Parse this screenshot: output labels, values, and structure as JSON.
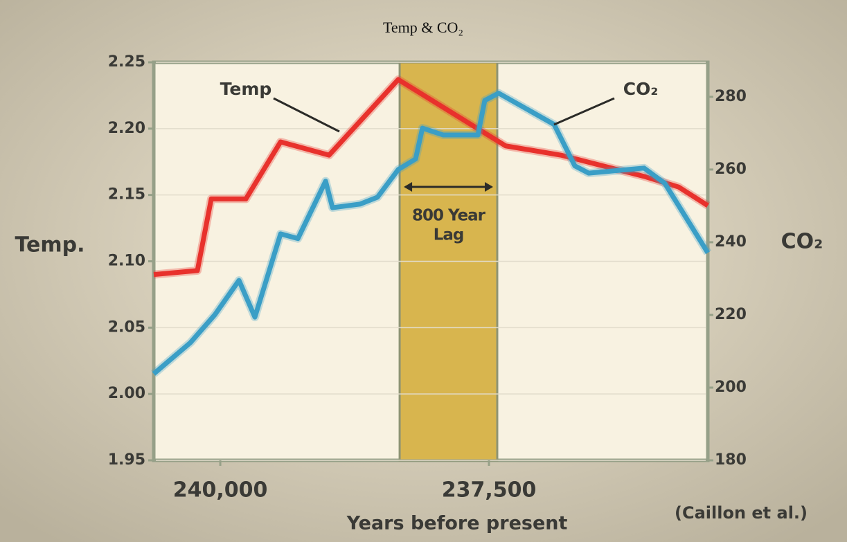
{
  "chart_data": {
    "type": "line",
    "title": "Temp & CO₂",
    "x_label": "Years before present",
    "y_label": "Temp.",
    "y2_label": "CO₂",
    "source": "(Caillon et al.)",
    "xlim": [
      240619,
      235464
    ],
    "xticks": [
      {
        "value": 240000,
        "label": "240,000"
      },
      {
        "value": 237500,
        "label": "237,500"
      }
    ],
    "ylim": [
      1.95,
      2.25
    ],
    "yticks": [
      1.95,
      {
        "value": 2.0,
        "label": "2.00"
      },
      2.05,
      {
        "value": 2.1,
        "label": "2.10"
      },
      2.15,
      {
        "value": 2.2,
        "label": "2.20"
      },
      2.25
    ],
    "y2lim": [
      180,
      289.5
    ],
    "y2ticks": [
      180,
      200,
      220,
      240,
      260,
      280
    ],
    "grid": true,
    "highlight": {
      "xrange": [
        238331,
        237423
      ],
      "color": "#d8b54e",
      "label_lines": [
        "800 Year",
        "Lag"
      ]
    },
    "series": [
      {
        "name": "Temp",
        "color": "#e8312c",
        "x": [
          240619,
          240213,
          240084,
          239762,
          239439,
          238988,
          238344,
          237345,
          236830,
          236057,
          235735,
          235464
        ],
        "values": [
          2.09,
          2.093,
          2.147,
          2.147,
          2.19,
          2.18,
          2.237,
          2.187,
          2.18,
          2.164,
          2.156,
          2.142
        ]
      },
      {
        "name": "CO₂",
        "color": "#3a9ec6",
        "axis": "y2",
        "x": [
          240619,
          240277,
          240052,
          239826,
          239678,
          239439,
          239278,
          239020,
          238956,
          238698,
          238537,
          238344,
          238183,
          238119,
          237925,
          237603,
          237539,
          237410,
          236894,
          236701,
          236572,
          236057,
          235864,
          235464
        ],
        "values": [
          203.8,
          212.4,
          220,
          229.5,
          219.4,
          242.3,
          241,
          256.8,
          249.5,
          250.5,
          252.4,
          260,
          262.9,
          271.4,
          269.5,
          269.5,
          279,
          281,
          272.4,
          261,
          259,
          260.4,
          256.2,
          237.1
        ]
      }
    ]
  }
}
